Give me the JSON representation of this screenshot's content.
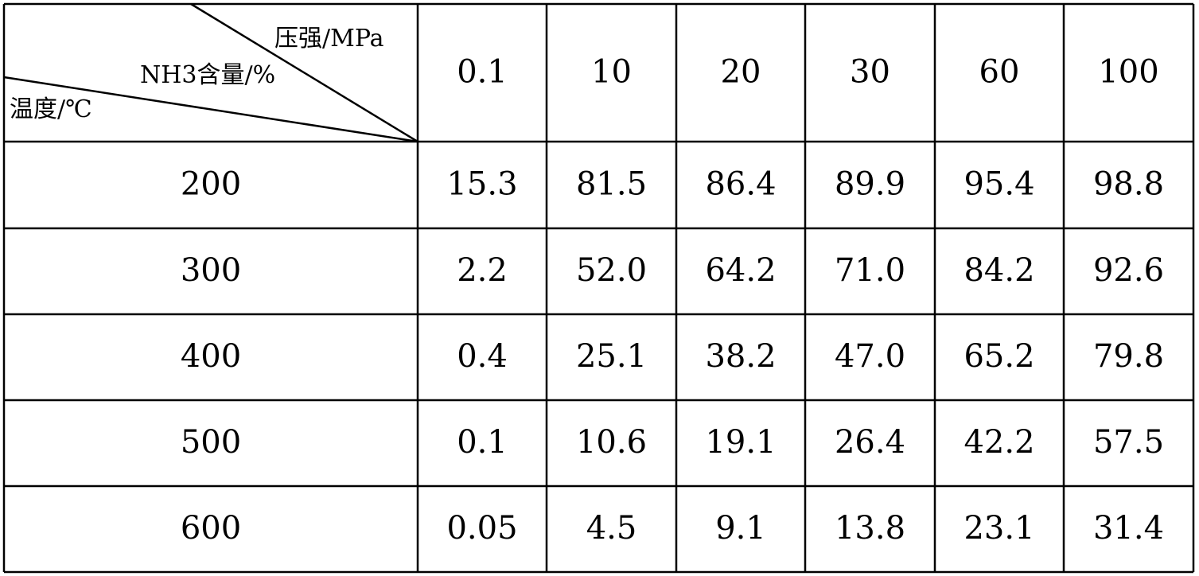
{
  "table": {
    "corner": {
      "column_label": "压强/MPa",
      "middle_label": "NH3含量/%",
      "row_label": "温度/℃"
    },
    "columns": [
      "0.1",
      "10",
      "20",
      "30",
      "60",
      "100"
    ],
    "rows": [
      {
        "label": "200",
        "values": [
          "15.3",
          "81.5",
          "86.4",
          "89.9",
          "95.4",
          "98.8"
        ]
      },
      {
        "label": "300",
        "values": [
          "2.2",
          "52.0",
          "64.2",
          "71.0",
          "84.2",
          "92.6"
        ]
      },
      {
        "label": "400",
        "values": [
          "0.4",
          "25.1",
          "38.2",
          "47.0",
          "65.2",
          "79.8"
        ]
      },
      {
        "label": "500",
        "values": [
          "0.1",
          "10.6",
          "19.1",
          "26.4",
          "42.2",
          "57.5"
        ]
      },
      {
        "label": "600",
        "values": [
          "0.05",
          "4.5",
          "9.1",
          "13.8",
          "23.1",
          "31.4"
        ]
      }
    ]
  }
}
